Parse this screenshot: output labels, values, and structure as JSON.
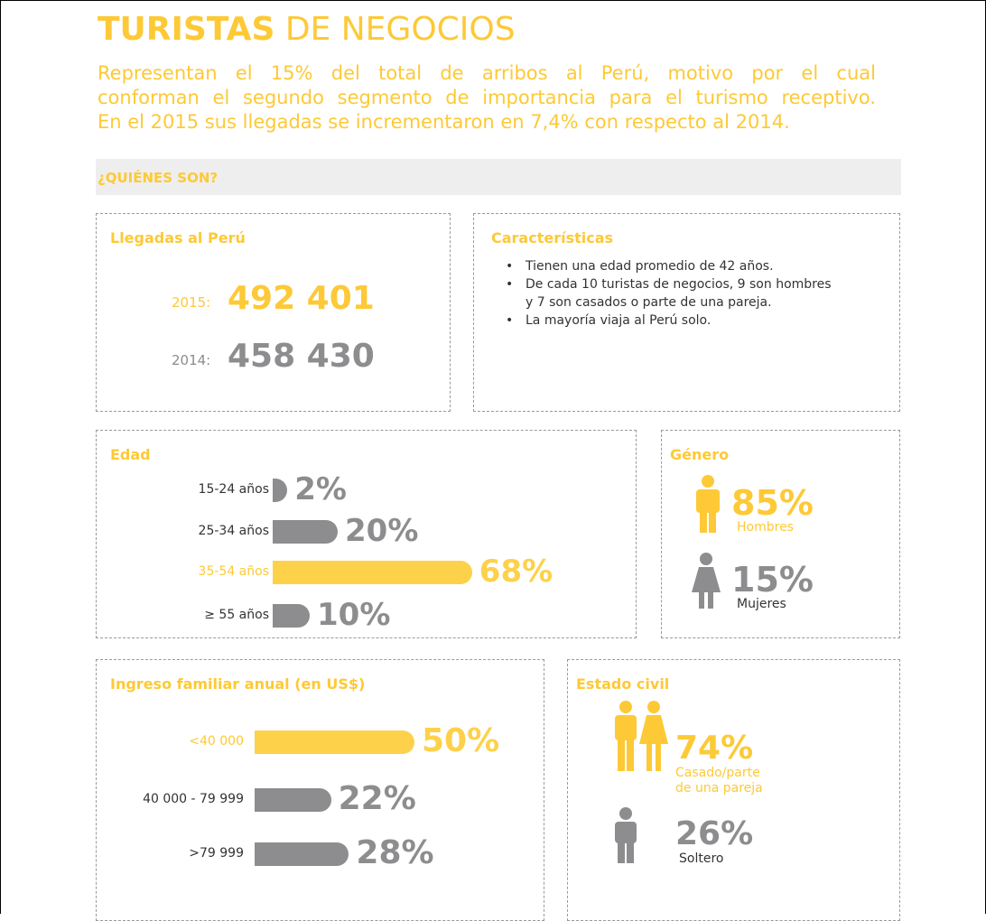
{
  "header": {
    "title_bold": "TURISTAS",
    "title_light": "DE NEGOCIOS",
    "intro": [
      "Representan el 15% del total de arribos al Perú, motivo por el cual",
      "conforman el segundo segmento de importancia para el turismo receptivo.",
      "En el 2015 sus llegadas se incrementaron en 7,4% con respecto al 2014."
    ]
  },
  "section": "¿QUIÉNES SON?",
  "llegadas": {
    "title": "Llegadas al Perú",
    "rows": [
      {
        "label": "2015:",
        "value": "492 401",
        "color": "#fdc936"
      },
      {
        "label": "2014:",
        "value": "458 430",
        "color": "#8d8d8f"
      }
    ]
  },
  "caracteristicas": {
    "title": "Características",
    "items": [
      "Tienen una edad promedio de 42 años.",
      "De cada 10 turistas de negocios, 9 son hombres y 7 son casados o parte de una pareja.",
      "La mayoría viaja al Perú solo."
    ]
  },
  "edad": {
    "title": "Edad",
    "categories": [
      "15-24 años",
      "25-34 años",
      "35-54 años",
      "≥ 55 años"
    ],
    "values": [
      2,
      20,
      68,
      10
    ],
    "value_labels": [
      "2%",
      "20%",
      "68%",
      "10%"
    ],
    "colors": [
      "#8d8d8f",
      "#8d8d8f",
      "#fdd14a",
      "#8d8d8f"
    ]
  },
  "genero": {
    "title": "Género",
    "items": [
      {
        "value": "85%",
        "label": "Hombres",
        "color": "#fdc936"
      },
      {
        "value": "15%",
        "label": "Mujeres",
        "color": "#8d8d8f"
      }
    ]
  },
  "ingreso": {
    "title": "Ingreso familiar anual (en US$)",
    "categories": [
      "<40 000",
      "40 000 - 79 999",
      ">79 999"
    ],
    "values": [
      50,
      22,
      28
    ],
    "value_labels": [
      "50%",
      "22%",
      "28%"
    ],
    "colors": [
      "#fdd14a",
      "#8d8d8f",
      "#8d8d8f"
    ]
  },
  "estado_civil": {
    "title": "Estado civil",
    "items": [
      {
        "value": "74%",
        "label": [
          "Casado/parte",
          "de una pareja"
        ],
        "color": "#fdc936"
      },
      {
        "value": "26%",
        "label": [
          "Soltero"
        ],
        "color": "#8d8d8f"
      }
    ]
  }
}
